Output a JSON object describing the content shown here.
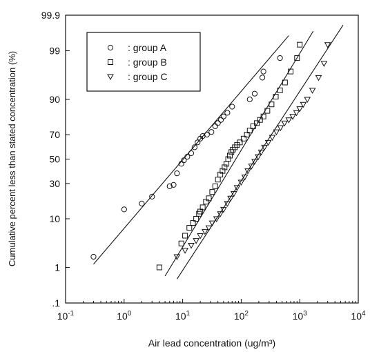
{
  "chart_data": {
    "type": "scatter",
    "title": "",
    "xlabel": "Air lead concentration (ug/m³)",
    "ylabel": "Cumulative percent less than stated concentration (%)",
    "x_scale": "log",
    "y_scale": "probability",
    "xlim": [
      0.1,
      10000
    ],
    "ylim": [
      0.1,
      99.9
    ],
    "x_ticks": [
      {
        "value": 0.1,
        "base": "10",
        "exp": "-1"
      },
      {
        "value": 1,
        "base": "10",
        "exp": "0"
      },
      {
        "value": 10,
        "base": "10",
        "exp": "1"
      },
      {
        "value": 100,
        "base": "10",
        "exp": "2"
      },
      {
        "value": 1000,
        "base": "10",
        "exp": "3"
      },
      {
        "value": 10000,
        "base": "10",
        "exp": "4"
      }
    ],
    "x_tick_labels": [
      "10-1",
      "100",
      "101",
      "102",
      "103",
      "104"
    ],
    "y_ticks": [
      0.1,
      1,
      10,
      30,
      50,
      70,
      90,
      99,
      99.9
    ],
    "y_tick_labels": [
      ".1",
      "1",
      "10",
      "30",
      "50",
      "70",
      "90",
      "99",
      "99.9"
    ],
    "grid": false,
    "legend": {
      "position": "top-left",
      "entries": [
        {
          "symbol": "○",
          "label": ": group A"
        },
        {
          "symbol": "□",
          "label": ": group B"
        },
        {
          "symbol": "▽",
          "label": ": group C"
        }
      ]
    },
    "series": [
      {
        "name": "group A",
        "marker": "circle",
        "points": [
          [
            0.3,
            1.8
          ],
          [
            1.0,
            14
          ],
          [
            2.0,
            17
          ],
          [
            3.0,
            21
          ],
          [
            6.0,
            28
          ],
          [
            7.0,
            29
          ],
          [
            8.0,
            38
          ],
          [
            9.5,
            46
          ],
          [
            10.5,
            49
          ],
          [
            12,
            52
          ],
          [
            14,
            55
          ],
          [
            16,
            60
          ],
          [
            18,
            64
          ],
          [
            20,
            67
          ],
          [
            22,
            69
          ],
          [
            26,
            70
          ],
          [
            31,
            72
          ],
          [
            36,
            76
          ],
          [
            40,
            78
          ],
          [
            45,
            80
          ],
          [
            50,
            82
          ],
          [
            58,
            84
          ],
          [
            70,
            87
          ],
          [
            140,
            90
          ],
          [
            170,
            92
          ],
          [
            230,
            96
          ],
          [
            240,
            97
          ],
          [
            460,
            98.5
          ]
        ],
        "fit": [
          [
            0.3,
            1.2
          ],
          [
            650,
            99.6
          ]
        ]
      },
      {
        "name": "group B",
        "marker": "square",
        "points": [
          [
            4.0,
            1.0
          ],
          [
            9.5,
            3.5
          ],
          [
            11,
            5
          ],
          [
            13,
            7
          ],
          [
            15,
            8.5
          ],
          [
            17,
            10
          ],
          [
            19,
            12
          ],
          [
            20,
            13
          ],
          [
            22,
            15
          ],
          [
            25,
            18
          ],
          [
            28,
            20
          ],
          [
            32,
            24
          ],
          [
            36,
            28
          ],
          [
            40,
            33
          ],
          [
            44,
            37
          ],
          [
            48,
            40
          ],
          [
            52,
            43
          ],
          [
            56,
            46
          ],
          [
            60,
            50
          ],
          [
            64,
            53
          ],
          [
            68,
            56
          ],
          [
            72,
            58
          ],
          [
            78,
            60
          ],
          [
            85,
            62
          ],
          [
            95,
            64
          ],
          [
            110,
            67
          ],
          [
            125,
            70
          ],
          [
            140,
            73
          ],
          [
            160,
            76
          ],
          [
            185,
            78
          ],
          [
            210,
            80
          ],
          [
            240,
            82
          ],
          [
            280,
            85
          ],
          [
            330,
            88
          ],
          [
            390,
            91
          ],
          [
            460,
            93
          ],
          [
            560,
            95
          ],
          [
            700,
            97
          ],
          [
            900,
            98.5
          ],
          [
            1000,
            99.3
          ]
        ],
        "fit": [
          [
            5,
            0.6
          ],
          [
            1700,
            99.7
          ]
        ]
      },
      {
        "name": "group C",
        "marker": "triangle",
        "points": [
          [
            8,
            1.8
          ],
          [
            11,
            2.5
          ],
          [
            14,
            3.2
          ],
          [
            17,
            4
          ],
          [
            20,
            5
          ],
          [
            24,
            6
          ],
          [
            28,
            7
          ],
          [
            32,
            8.5
          ],
          [
            38,
            10
          ],
          [
            44,
            12
          ],
          [
            50,
            14
          ],
          [
            58,
            17
          ],
          [
            66,
            20
          ],
          [
            75,
            23
          ],
          [
            85,
            27
          ],
          [
            100,
            31
          ],
          [
            115,
            35
          ],
          [
            130,
            40
          ],
          [
            150,
            44
          ],
          [
            170,
            48
          ],
          [
            195,
            52
          ],
          [
            220,
            56
          ],
          [
            250,
            60
          ],
          [
            290,
            64
          ],
          [
            340,
            68
          ],
          [
            400,
            72
          ],
          [
            470,
            75
          ],
          [
            550,
            78
          ],
          [
            650,
            80
          ],
          [
            760,
            82
          ],
          [
            880,
            84
          ],
          [
            1000,
            86
          ],
          [
            1150,
            88
          ],
          [
            1350,
            90
          ],
          [
            1650,
            93
          ],
          [
            2100,
            96
          ],
          [
            2600,
            98
          ],
          [
            3000,
            99.3
          ]
        ],
        "fit": [
          [
            8,
            0.5
          ],
          [
            5500,
            99.8
          ]
        ]
      }
    ]
  }
}
